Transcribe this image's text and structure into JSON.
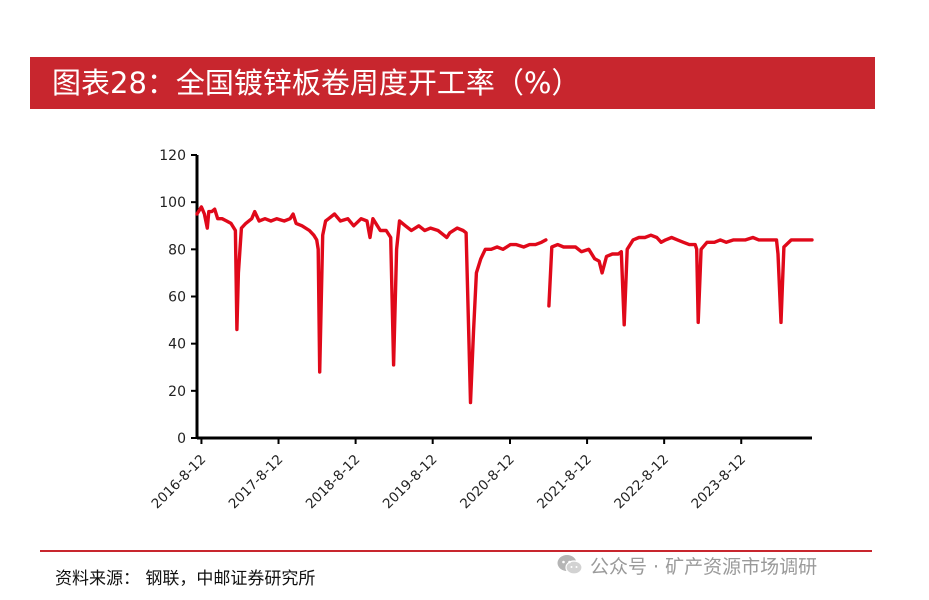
{
  "header": {
    "title": "图表28：全国镀锌板卷周度开工率（%）"
  },
  "footer": {
    "source": "资料来源： 钢联，中邮证券研究所",
    "watermark": "公众号 · 矿产资源市场调研"
  },
  "colors": {
    "title_bar": "#c8262e",
    "series": "#e0091a",
    "axis": "#000000"
  },
  "chart_data": {
    "type": "line",
    "title": "",
    "xlabel": "",
    "ylabel": "",
    "ylim": [
      0,
      120
    ],
    "yticks": [
      0,
      20,
      40,
      60,
      80,
      100,
      120
    ],
    "grid": false,
    "legend": "none",
    "x_start": "2016-07-22",
    "x_end": "2024-07-12",
    "xtick_labels": [
      "2016-8-12",
      "2017-8-12",
      "2018-8-12",
      "2019-8-12",
      "2020-8-12",
      "2021-8-12",
      "2022-8-12",
      "2023-8-12"
    ],
    "xtick_dates": [
      "2016-08-12",
      "2017-08-12",
      "2018-08-12",
      "2019-08-12",
      "2020-08-12",
      "2021-08-12",
      "2022-08-12",
      "2023-08-12"
    ],
    "series": [
      {
        "name": "",
        "points": [
          [
            "2016-07-22",
            95
          ],
          [
            "2016-08-12",
            98
          ],
          [
            "2016-08-26",
            95
          ],
          [
            "2016-09-09",
            89
          ],
          [
            "2016-09-16",
            96
          ],
          [
            "2016-09-30",
            96
          ],
          [
            "2016-10-14",
            97
          ],
          [
            "2016-10-28",
            93
          ],
          [
            "2016-11-18",
            93
          ],
          [
            "2016-12-09",
            92
          ],
          [
            "2016-12-30",
            91
          ],
          [
            "2017-01-20",
            88
          ],
          [
            "2017-01-27",
            46
          ],
          [
            "2017-02-03",
            70
          ],
          [
            "2017-02-17",
            89
          ],
          [
            "2017-03-10",
            91
          ],
          [
            "2017-04-07",
            93
          ],
          [
            "2017-04-21",
            96
          ],
          [
            "2017-05-12",
            92
          ],
          [
            "2017-06-09",
            93
          ],
          [
            "2017-07-07",
            92
          ],
          [
            "2017-08-04",
            93
          ],
          [
            "2017-09-08",
            92
          ],
          [
            "2017-10-06",
            93
          ],
          [
            "2017-10-20",
            95
          ],
          [
            "2017-11-03",
            91
          ],
          [
            "2017-12-01",
            90
          ],
          [
            "2018-01-05",
            88
          ],
          [
            "2018-01-26",
            86
          ],
          [
            "2018-02-09",
            84
          ],
          [
            "2018-02-16",
            80
          ],
          [
            "2018-02-23",
            28
          ],
          [
            "2018-03-09",
            86
          ],
          [
            "2018-03-23",
            92
          ],
          [
            "2018-04-06",
            93
          ],
          [
            "2018-05-04",
            95
          ],
          [
            "2018-06-01",
            92
          ],
          [
            "2018-07-06",
            93
          ],
          [
            "2018-08-03",
            90
          ],
          [
            "2018-09-07",
            93
          ],
          [
            "2018-10-05",
            92
          ],
          [
            "2018-10-19",
            85
          ],
          [
            "2018-11-02",
            93
          ],
          [
            "2018-12-07",
            88
          ],
          [
            "2019-01-04",
            88
          ],
          [
            "2019-01-25",
            85
          ],
          [
            "2019-02-08",
            31
          ],
          [
            "2019-02-22",
            80
          ],
          [
            "2019-03-08",
            92
          ],
          [
            "2019-04-05",
            90
          ],
          [
            "2019-05-03",
            88
          ],
          [
            "2019-06-07",
            90
          ],
          [
            "2019-07-05",
            88
          ],
          [
            "2019-08-02",
            89
          ],
          [
            "2019-09-06",
            88
          ],
          [
            "2019-10-04",
            86
          ],
          [
            "2019-10-18",
            85
          ],
          [
            "2019-11-01",
            87
          ],
          [
            "2019-12-06",
            89
          ],
          [
            "2020-01-03",
            88
          ],
          [
            "2020-01-17",
            87
          ],
          [
            "2020-01-31",
            40
          ],
          [
            "2020-02-07",
            15
          ],
          [
            "2020-02-21",
            45
          ],
          [
            "2020-03-06",
            70
          ],
          [
            "2020-03-27",
            76
          ],
          [
            "2020-04-17",
            80
          ],
          [
            "2020-05-15",
            80
          ],
          [
            "2020-06-12",
            81
          ],
          [
            "2020-07-10",
            80
          ],
          [
            "2020-08-14",
            82
          ],
          [
            "2020-09-11",
            82
          ],
          [
            "2020-10-16",
            81
          ],
          [
            "2020-11-13",
            82
          ],
          [
            "2020-12-11",
            82
          ],
          [
            "2021-01-08",
            83
          ],
          [
            "2021-01-29",
            84
          ],
          null,
          [
            "2021-02-12",
            56
          ],
          [
            "2021-02-26",
            81
          ],
          [
            "2021-03-26",
            82
          ],
          [
            "2021-04-23",
            81
          ],
          [
            "2021-05-21",
            81
          ],
          [
            "2021-06-18",
            81
          ],
          [
            "2021-07-16",
            79
          ],
          [
            "2021-08-20",
            80
          ],
          [
            "2021-09-17",
            76
          ],
          [
            "2021-10-08",
            75
          ],
          [
            "2021-10-22",
            70
          ],
          [
            "2021-11-12",
            77
          ],
          [
            "2021-12-10",
            78
          ],
          [
            "2022-01-07",
            78
          ],
          [
            "2022-01-21",
            79
          ],
          [
            "2022-02-04",
            48
          ],
          [
            "2022-02-18",
            80
          ],
          [
            "2022-03-18",
            84
          ],
          [
            "2022-04-15",
            85
          ],
          [
            "2022-05-13",
            85
          ],
          [
            "2022-06-10",
            86
          ],
          [
            "2022-07-08",
            85
          ],
          [
            "2022-07-29",
            83
          ],
          [
            "2022-08-19",
            84
          ],
          [
            "2022-09-16",
            85
          ],
          [
            "2022-10-14",
            84
          ],
          [
            "2022-11-11",
            83
          ],
          [
            "2022-12-09",
            82
          ],
          [
            "2023-01-06",
            82
          ],
          [
            "2023-01-13",
            80
          ],
          [
            "2023-01-20",
            49
          ],
          [
            "2023-02-03",
            80
          ],
          [
            "2023-03-03",
            83
          ],
          [
            "2023-04-07",
            83
          ],
          [
            "2023-05-05",
            84
          ],
          [
            "2023-06-02",
            83
          ],
          [
            "2023-07-07",
            84
          ],
          [
            "2023-08-04",
            84
          ],
          [
            "2023-09-01",
            84
          ],
          [
            "2023-10-06",
            85
          ],
          [
            "2023-11-03",
            84
          ],
          [
            "2023-12-08",
            84
          ],
          [
            "2024-01-05",
            84
          ],
          [
            "2024-01-26",
            84
          ],
          [
            "2024-02-02",
            78
          ],
          [
            "2024-02-16",
            49
          ],
          [
            "2024-03-01",
            81
          ],
          [
            "2024-04-05",
            84
          ],
          [
            "2024-05-03",
            84
          ],
          [
            "2024-06-07",
            84
          ],
          [
            "2024-07-12",
            84
          ]
        ]
      }
    ]
  }
}
